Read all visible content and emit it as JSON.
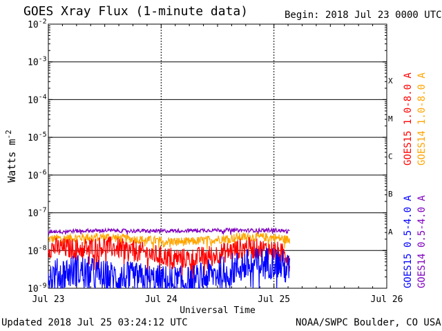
{
  "header": {
    "title": "GOES Xray Flux (1-minute data)",
    "begin": "Begin:  2018 Jul 23 0000 UTC"
  },
  "footer": {
    "updated": "Updated 2018 Jul 25 03:24:12 UTC",
    "source": "NOAA/SWPC Boulder, CO USA"
  },
  "chart_data": {
    "type": "line",
    "title": "GOES Xray Flux (1-minute data)",
    "xlabel": "Universal Time",
    "ylabel": "Watts m",
    "ylabel_superscript": "-2",
    "y_scale": "log",
    "ylim": [
      1e-09,
      0.01
    ],
    "xlim_days": [
      0,
      3
    ],
    "x_ticks": [
      {
        "day": 0,
        "label": "Jul 23"
      },
      {
        "day": 1,
        "label": "Jul 24"
      },
      {
        "day": 2,
        "label": "Jul 25"
      },
      {
        "day": 3,
        "label": "Jul 26"
      }
    ],
    "y_ticks": [
      {
        "exp": -9,
        "label": "-9"
      },
      {
        "exp": -8,
        "label": "-8"
      },
      {
        "exp": -7,
        "label": "-7"
      },
      {
        "exp": -6,
        "label": "-6"
      },
      {
        "exp": -5,
        "label": "-5"
      },
      {
        "exp": -4,
        "label": "-4"
      },
      {
        "exp": -3,
        "label": "-3"
      },
      {
        "exp": -2,
        "label": "-2"
      }
    ],
    "flare_classes": [
      {
        "label": "A",
        "exp": -7.5
      },
      {
        "label": "B",
        "exp": -6.5
      },
      {
        "label": "C",
        "exp": -5.5
      },
      {
        "label": "M",
        "exp": -4.5
      },
      {
        "label": "X",
        "exp": -3.5
      }
    ],
    "data_end_day": 2.14,
    "series": [
      {
        "name": "GOES15 1.0-8.0 A",
        "color": "#ff0000",
        "x": [
          0,
          0.25,
          0.5,
          0.75,
          1.0,
          1.25,
          1.5,
          1.75,
          2.0,
          2.14
        ],
        "y": [
          1.2e-08,
          1.1e-08,
          1.3e-08,
          1e-08,
          7e-09,
          6e-09,
          8e-09,
          1.2e-08,
          1e-08,
          7e-09
        ]
      },
      {
        "name": "GOES14 1.0-8.0 A",
        "color": "#ffa500",
        "x": [
          0,
          0.25,
          0.5,
          0.75,
          1.0,
          1.25,
          1.5,
          1.75,
          2.0,
          2.14
        ],
        "y": [
          2e-08,
          2.2e-08,
          2.3e-08,
          2e-08,
          1.8e-08,
          1.7e-08,
          2e-08,
          2.3e-08,
          2.2e-08,
          1.9e-08
        ]
      },
      {
        "name": "GOES15 0.5-4.0 A",
        "color": "#0000ff",
        "x": [
          0,
          0.25,
          0.5,
          0.75,
          1.0,
          1.25,
          1.5,
          1.75,
          2.0,
          2.14
        ],
        "y": [
          2e-09,
          3e-09,
          2e-09,
          1.8e-09,
          1.5e-09,
          1.4e-09,
          2.5e-09,
          4e-09,
          5e-09,
          3e-09
        ]
      },
      {
        "name": "GOES14 0.5-4.0 A",
        "color": "#7f00bf",
        "x": [
          0,
          0.25,
          0.5,
          0.75,
          1.0,
          1.25,
          1.5,
          1.75,
          2.0,
          2.14
        ],
        "y": [
          3.2e-08,
          3.3e-08,
          3.4e-08,
          3.3e-08,
          3.3e-08,
          3.4e-08,
          3.5e-08,
          3.4e-08,
          3.5e-08,
          3.2e-08
        ]
      }
    ],
    "legend_right": [
      "GOES15 1.0-8.0 A",
      "GOES14 1.0-8.0 A",
      "GOES15 0.5-4.0 A",
      "GOES14 0.5-4.0 A"
    ]
  }
}
